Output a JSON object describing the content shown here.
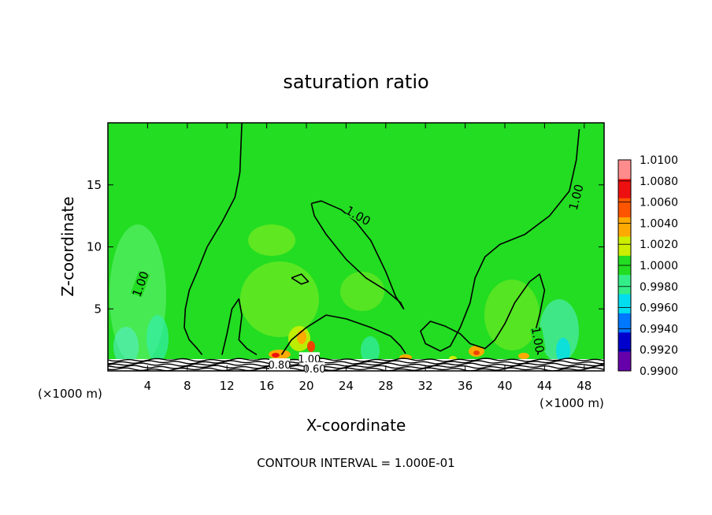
{
  "colors": {
    "background": "#ffffff",
    "field": "#22dd22",
    "contour": "#000000"
  },
  "chart_data": {
    "type": "heatmap",
    "title": "saturation ratio",
    "xlabel": "X-coordinate",
    "ylabel": "Z-coordinate",
    "x_unit_label": "(×1000 m)",
    "x_unit_label_right": "(×1000 m)",
    "xlim": [
      0,
      50
    ],
    "ylim": [
      0,
      20
    ],
    "xticks": [
      4,
      8,
      12,
      16,
      20,
      24,
      28,
      32,
      36,
      40,
      44,
      48
    ],
    "yticks": [
      5,
      10,
      15
    ],
    "footer": "CONTOUR INTERVAL = 1.000E-01",
    "colorbar": {
      "levels": [
        "1.0100",
        "1.0080",
        "1.0060",
        "1.0040",
        "1.0020",
        "1.0000",
        "0.9980",
        "0.9960",
        "0.9940",
        "0.9920",
        "0.9900"
      ],
      "colors": [
        "#ff8c8c",
        "#ee1010",
        "#ff5500",
        "#ffaa00",
        "#ccee00",
        "#22dd22",
        "#33ee88",
        "#00ddee",
        "#0077ff",
        "#0000cc",
        "#6600aa"
      ]
    },
    "contour_labels": [
      {
        "text": "1.00",
        "x": 3.3,
        "y": 7.0,
        "angle": -70
      },
      {
        "text": "1.00",
        "x": 25.2,
        "y": 12.5,
        "angle": 30
      },
      {
        "text": "1.00",
        "x": 47.2,
        "y": 14.0,
        "angle": -75
      },
      {
        "text": "1.00",
        "x": 43.3,
        "y": 2.5,
        "angle": 80
      },
      {
        "text": "1.00",
        "x": 20.3,
        "y": 1.0,
        "angle": 0
      },
      {
        "text": "0.80",
        "x": 17.3,
        "y": 0.5,
        "angle": 0
      },
      {
        "text": "0.60",
        "x": 20.8,
        "y": 0.2,
        "angle": 0
      }
    ],
    "contours": [
      [
        [
          13.5,
          20
        ],
        [
          13.3,
          16
        ],
        [
          12.8,
          14
        ],
        [
          11.5,
          12
        ],
        [
          10,
          10
        ],
        [
          9,
          8
        ],
        [
          8.2,
          6.5
        ],
        [
          7.8,
          5
        ],
        [
          7.7,
          3.5
        ],
        [
          8.2,
          2.5
        ],
        [
          9,
          1.8
        ],
        [
          9.5,
          1.3
        ]
      ],
      [
        [
          20.5,
          13.5
        ],
        [
          20.8,
          12.5
        ],
        [
          22,
          11
        ],
        [
          24,
          9
        ],
        [
          26,
          7.5
        ],
        [
          28,
          6.5
        ],
        [
          29.5,
          5.5
        ],
        [
          29.8,
          5
        ],
        [
          29,
          6
        ],
        [
          28,
          8
        ],
        [
          26.5,
          10.5
        ],
        [
          25,
          12
        ],
        [
          23.5,
          13
        ],
        [
          21.5,
          13.7
        ],
        [
          20.5,
          13.5
        ]
      ],
      [
        [
          47.5,
          19.5
        ],
        [
          47.2,
          17
        ],
        [
          46.5,
          14.5
        ],
        [
          44.5,
          12.5
        ],
        [
          42,
          11
        ],
        [
          39.5,
          10.2
        ],
        [
          38,
          9.2
        ],
        [
          37,
          7.5
        ],
        [
          36.5,
          5.5
        ],
        [
          35.5,
          3.5
        ],
        [
          34.5,
          2
        ],
        [
          33.5,
          1.6
        ],
        [
          32,
          2.2
        ],
        [
          31.5,
          3.2
        ],
        [
          32.5,
          4
        ],
        [
          34,
          3.6
        ],
        [
          35.5,
          3
        ],
        [
          36.5,
          2.2
        ],
        [
          38,
          1.8
        ],
        [
          39,
          2.5
        ],
        [
          40,
          3.8
        ],
        [
          41,
          5.5
        ],
        [
          42.5,
          7.2
        ],
        [
          43.5,
          7.8
        ],
        [
          44,
          6.5
        ],
        [
          43.5,
          4.5
        ],
        [
          43,
          3
        ],
        [
          43.5,
          2
        ],
        [
          43.3,
          1.3
        ]
      ],
      [
        [
          11.5,
          1.3
        ],
        [
          12,
          3
        ],
        [
          12.5,
          5
        ],
        [
          13.2,
          5.8
        ],
        [
          13.5,
          4.5
        ],
        [
          13.2,
          2.5
        ],
        [
          14,
          1.8
        ],
        [
          15,
          1.3
        ]
      ],
      [
        [
          18.5,
          7.5
        ],
        [
          19.5,
          7.8
        ],
        [
          20.2,
          7.2
        ],
        [
          19.5,
          7.0
        ],
        [
          18.5,
          7.5
        ]
      ],
      [
        [
          17.5,
          1.3
        ],
        [
          18.5,
          2.5
        ],
        [
          20,
          3.5
        ],
        [
          22,
          4.5
        ],
        [
          24,
          4.2
        ],
        [
          26.5,
          3.5
        ],
        [
          28.5,
          2.8
        ],
        [
          29.5,
          2
        ],
        [
          30,
          1.4
        ]
      ]
    ]
  }
}
